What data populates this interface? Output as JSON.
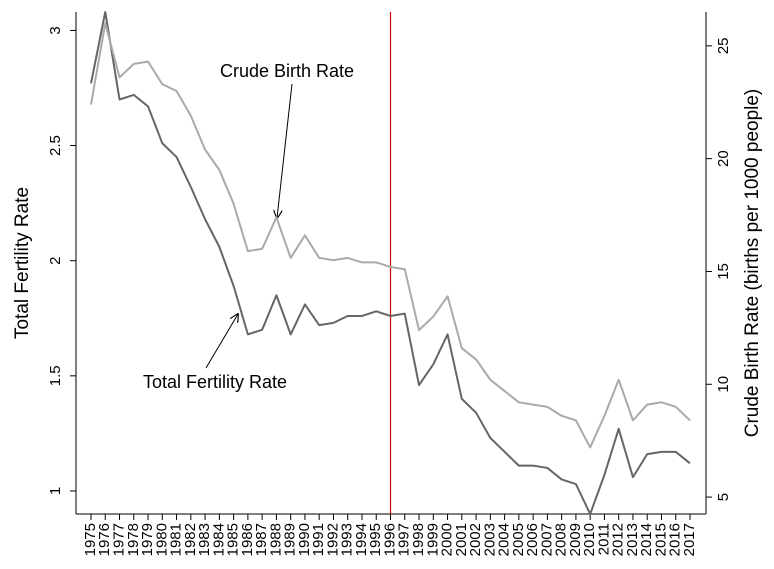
{
  "chart_data": {
    "type": "line",
    "categories": [
      "1975",
      "1976",
      "1977",
      "1978",
      "1979",
      "1980",
      "1981",
      "1982",
      "1983",
      "1984",
      "1985",
      "1986",
      "1987",
      "1988",
      "1989",
      "1990",
      "1991",
      "1992",
      "1993",
      "1994",
      "1995",
      "1996",
      "1997",
      "1998",
      "1999",
      "2000",
      "2001",
      "2002",
      "2003",
      "2004",
      "2005",
      "2006",
      "2007",
      "2008",
      "2009",
      "2010",
      "2011",
      "2012",
      "2013",
      "2014",
      "2015",
      "2016",
      "2017"
    ],
    "series": [
      {
        "name": "Total Fertility Rate",
        "color": "#666666",
        "values": [
          2.77,
          3.08,
          2.7,
          2.72,
          2.67,
          2.51,
          2.45,
          2.32,
          2.18,
          2.06,
          1.89,
          1.68,
          1.7,
          1.85,
          1.68,
          1.81,
          1.72,
          1.73,
          1.76,
          1.76,
          1.78,
          1.76,
          1.77,
          1.46,
          1.55,
          1.68,
          1.4,
          1.34,
          1.23,
          1.17,
          1.11,
          1.11,
          1.1,
          1.05,
          1.03,
          0.9,
          1.07,
          1.27,
          1.06,
          1.16,
          1.17,
          1.17,
          1.12
        ]
      },
      {
        "name": "Crude Birth Rate",
        "color": "#aaaaaa",
        "axis": "y2",
        "values": [
          22.4,
          26.0,
          23.6,
          24.2,
          24.3,
          23.3,
          23.0,
          21.9,
          20.4,
          19.5,
          18.0,
          15.9,
          16.0,
          17.4,
          15.6,
          16.6,
          15.6,
          15.5,
          15.6,
          15.4,
          15.4,
          15.2,
          15.1,
          12.4,
          13.0,
          13.9,
          11.6,
          11.1,
          10.2,
          9.7,
          9.2,
          9.1,
          9.0,
          8.6,
          8.4,
          7.2,
          8.6,
          10.2,
          8.4,
          9.1,
          9.2,
          9.0,
          8.4
        ]
      }
    ],
    "ylabel": "Total Fertility Rate",
    "y2label": "Crude Birth Rate (births per 1000 people)",
    "ylim": [
      0.9,
      3.08
    ],
    "yticks": [
      1,
      1.5,
      2,
      2.5,
      3
    ],
    "y2lim": [
      4.25,
      26.5
    ],
    "y2ticks": [
      5,
      10,
      15,
      20,
      25
    ],
    "reference_line": {
      "x": "1996",
      "color": "#cc0000"
    },
    "annotations": [
      "Crude Birth Rate",
      "Total Fertility Rate"
    ]
  }
}
